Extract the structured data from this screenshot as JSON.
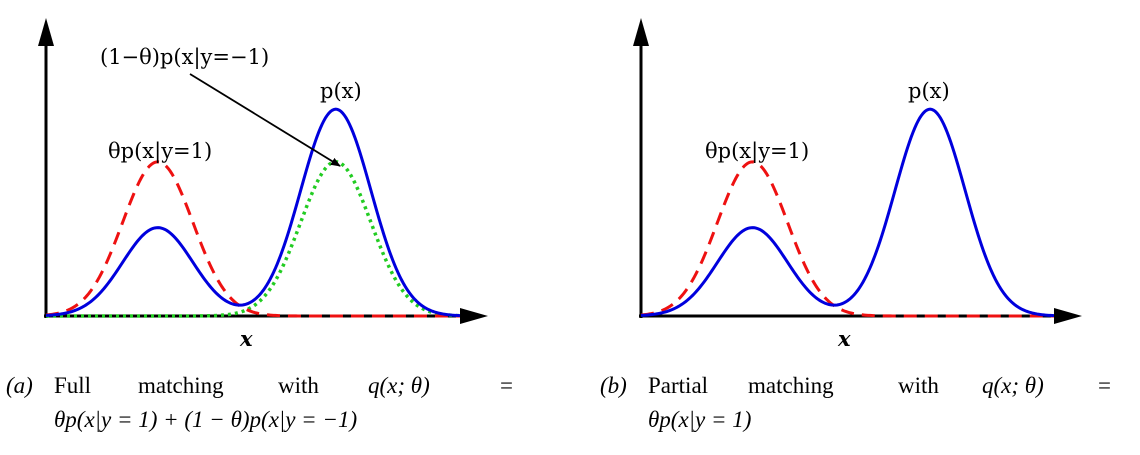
{
  "panels": [
    {
      "id": "a",
      "labels": {
        "top_annotation": "(1−θ)p(x|y=−1)",
        "p_x": "p(x)",
        "theta_pos": "θp(x|y=1)",
        "x_axis": "x"
      },
      "caption": {
        "tag": "(a)",
        "line1_words": [
          "Full",
          "matching",
          "with",
          "q(x; θ)",
          "="
        ],
        "line2": "θp(x|y = 1) + (1 − θ)p(x|y = −1)"
      },
      "curves": {
        "positive_mean": 0.27,
        "positive_peak_dashed": 0.82,
        "positive_peak_solid": 0.47,
        "negative_mean": 0.7,
        "negative_peak_dotted": 0.82,
        "negative_peak_solid": 1.1,
        "show_negative_dotted": true
      }
    },
    {
      "id": "b",
      "labels": {
        "p_x": "p(x)",
        "theta_pos": "θp(x|y=1)",
        "x_axis": "x"
      },
      "caption": {
        "tag": "(b)",
        "line1_words": [
          "Partial",
          "matching",
          "with",
          "q(x; θ)",
          "="
        ],
        "line2": "θp(x|y = 1)"
      },
      "curves": {
        "positive_mean": 0.27,
        "positive_peak_dashed": 0.82,
        "positive_peak_solid": 0.47,
        "negative_mean": 0.7,
        "negative_peak_solid": 1.1,
        "show_negative_dotted": false
      }
    }
  ],
  "colors": {
    "solid": "#0000dd",
    "dashed": "#ee1111",
    "dotted": "#22cc22",
    "axis": "#000000"
  }
}
